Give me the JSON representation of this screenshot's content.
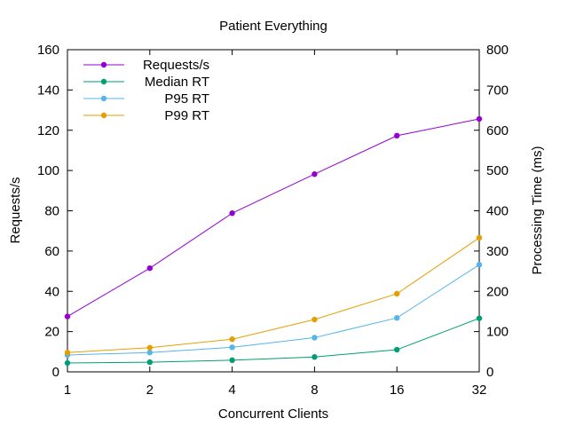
{
  "chart_data": {
    "type": "line",
    "title": "Patient Everything",
    "xlabel": "Concurrent Clients",
    "ylabel": "Requests/s",
    "y2label": "Processing Time (ms)",
    "x_categories": [
      "1",
      "2",
      "4",
      "8",
      "16",
      "32"
    ],
    "x_scale": "log2",
    "ylim": [
      0,
      160
    ],
    "y_ticks": [
      "0",
      "20",
      "40",
      "60",
      "80",
      "100",
      "120",
      "140",
      "160"
    ],
    "y2lim": [
      0,
      800
    ],
    "y2_ticks": [
      "0",
      "100",
      "200",
      "300",
      "400",
      "500",
      "600",
      "700",
      "800"
    ],
    "grid": false,
    "legend_position": "top-left",
    "series": [
      {
        "name": "Requests/s",
        "axis": "left",
        "color": "#9400d3",
        "values": [
          27.5,
          51.5,
          78.8,
          98.2,
          117.3,
          125.6
        ]
      },
      {
        "name": "Median RT",
        "axis": "right",
        "color": "#009e73",
        "values": [
          22,
          24,
          29,
          37,
          55,
          133
        ]
      },
      {
        "name": "P95 RT",
        "axis": "right",
        "color": "#56b4e9",
        "values": [
          42,
          48,
          61,
          85,
          134,
          266
        ]
      },
      {
        "name": "P99 RT",
        "axis": "right",
        "color": "#e69f00",
        "values": [
          48,
          60,
          81,
          130,
          194,
          333
        ]
      }
    ]
  }
}
